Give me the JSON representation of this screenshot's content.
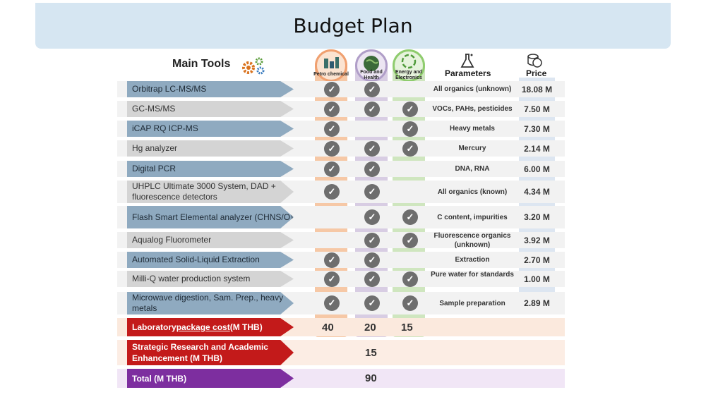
{
  "title": "Budget Plan",
  "headers": {
    "main_tools": "Main Tools",
    "parameters": "Parameters",
    "price": "Price",
    "gears_icon": "gears-icon",
    "flask_icon": "flask-icon",
    "coins_icon": "coins-icon"
  },
  "columns": [
    {
      "label": "Petro chemical",
      "icon": "factory-icon",
      "color": "#f6c8a6"
    },
    {
      "label": "Food and Health",
      "icon": "globe-icon",
      "color": "#d8cde3"
    },
    {
      "label": "Energy and Electronics",
      "icon": "recycle-icon",
      "color": "#cfe6bf"
    }
  ],
  "tools": [
    {
      "name": "Orbitrap LC-MS/MS",
      "petro": true,
      "food": true,
      "energy": false,
      "param": "All organics (unknown)",
      "price": "18.08 M"
    },
    {
      "name": "GC-MS/MS",
      "petro": true,
      "food": true,
      "energy": true,
      "param": "VOCs, PAHs, pesticides",
      "price": "7.50 M"
    },
    {
      "name": "iCAP RQ ICP-MS",
      "petro": true,
      "food": false,
      "energy": true,
      "param": "Heavy metals",
      "price": "7.30 M"
    },
    {
      "name": "Hg analyzer",
      "petro": true,
      "food": true,
      "energy": true,
      "param": "Mercury",
      "price": "2.14 M"
    },
    {
      "name": "Digital PCR",
      "petro": true,
      "food": true,
      "energy": false,
      "param": "DNA, RNA",
      "price": "6.00 M"
    },
    {
      "name": "UHPLC Ultimate 3000 System, DAD + fluorescence detectors",
      "petro": true,
      "food": true,
      "energy": false,
      "param": "All organics (known)",
      "price": "4.34 M"
    },
    {
      "name": "Flash Smart Elemental analyzer (CHNS/O)",
      "petro": false,
      "food": true,
      "energy": true,
      "param": "C content, impurities",
      "price": "3.20 M"
    },
    {
      "name": "Aqualog Fluorometer",
      "petro": false,
      "food": true,
      "energy": true,
      "param": "Fluorescence organics (unknown)",
      "price": "3.92 M"
    },
    {
      "name": "Automated Solid-Liquid Extraction",
      "petro": true,
      "food": true,
      "energy": false,
      "param": "Extraction",
      "price": "2.70 M"
    },
    {
      "name": "Milli-Q water production system",
      "petro": true,
      "food": true,
      "energy": true,
      "param": "Pure water for standards",
      "price": "1.00 M"
    },
    {
      "name": "Microwave digestion, Sam. Prep., heavy metals",
      "petro": true,
      "food": true,
      "energy": true,
      "param": "Sample preparation",
      "price": "2.89 M"
    }
  ],
  "summary": {
    "lab_label_pre": "Laboratory ",
    "lab_label_u": "package cost",
    "lab_label_post": " (M THB)",
    "lab_petro": "40",
    "lab_food": "20",
    "lab_energy": "15",
    "strategic_label": "Strategic Research and Academic Enhancement (M THB)",
    "strategic_value": "15",
    "total_label": "Total (M THB)",
    "total_value": "90"
  }
}
